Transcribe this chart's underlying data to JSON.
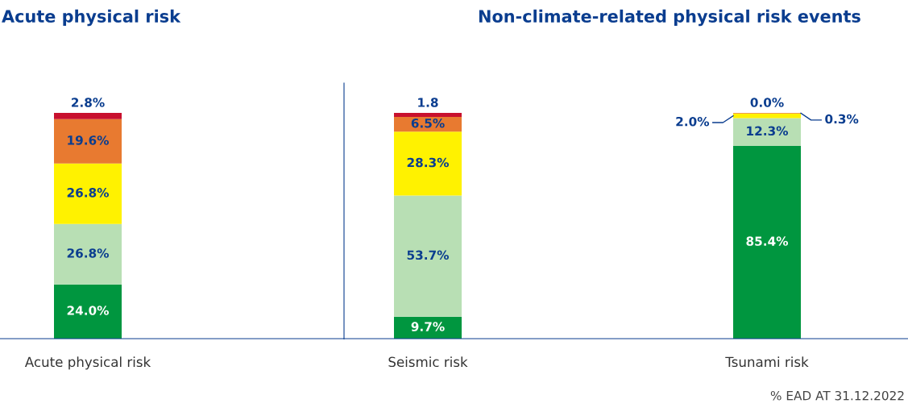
{
  "chart_data": [
    {
      "type": "bar",
      "stacked": true,
      "title": "Acute physical risk",
      "categories": [
        "Acute physical risk"
      ],
      "legend": false,
      "grid": false,
      "tick_labels": "x",
      "series": [
        {
          "color": "#00963f",
          "values": [
            24.0
          ],
          "value_labels": [
            "24.0%"
          ]
        },
        {
          "color": "#b8dfb4",
          "values": [
            26.8
          ],
          "value_labels": [
            "26.8%"
          ]
        },
        {
          "color": "#fff200",
          "values": [
            26.8
          ],
          "value_labels": [
            "26.8%"
          ]
        },
        {
          "color": "#e87a30",
          "values": [
            19.6
          ],
          "value_labels": [
            "19.6%"
          ]
        },
        {
          "color": "#c8102e",
          "values": [
            2.8
          ],
          "value_labels": [
            "2.8%"
          ]
        }
      ]
    },
    {
      "type": "bar",
      "stacked": true,
      "title": "Non-climate-related physical risk events",
      "categories": [
        "Seismic risk",
        "Tsunami risk"
      ],
      "legend": false,
      "grid": false,
      "tick_labels": "x",
      "series": [
        {
          "color": "#00963f",
          "values": [
            9.7,
            85.4
          ],
          "value_labels": [
            "9.7%",
            "85.4%"
          ]
        },
        {
          "color": "#b8dfb4",
          "values": [
            53.7,
            12.3
          ],
          "value_labels": [
            "53.7%",
            "12.3%"
          ]
        },
        {
          "color": "#fff200",
          "values": [
            28.3,
            2.0
          ],
          "value_labels": [
            "28.3%",
            "2.0%"
          ]
        },
        {
          "color": "#e87a30",
          "values": [
            6.5,
            0.3
          ],
          "value_labels": [
            "6.5%",
            "0.3%"
          ]
        },
        {
          "color": "#c8102e",
          "values": [
            1.8,
            0.0
          ],
          "value_labels": [
            "1.8",
            "0.0%"
          ]
        }
      ],
      "annotations": [
        "% EAD AT 31.12.2022"
      ]
    }
  ]
}
